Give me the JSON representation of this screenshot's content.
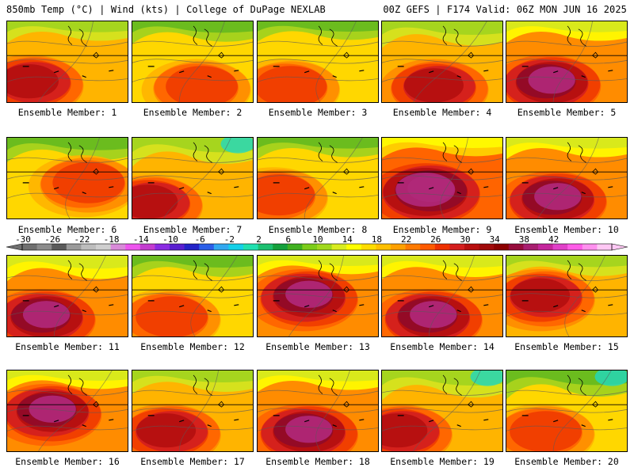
{
  "header": {
    "left": "850mb Temp (°C) | Wind (kts) | College of DuPage NEXLAB",
    "right": "00Z GEFS | F174 Valid: 06Z MON JUN 16 2025"
  },
  "panels": [
    {
      "label": "Ensemble Member: 1",
      "heat": 0.78,
      "cool": 0.35,
      "hot_x": 0.2,
      "hot_y": 0.8
    },
    {
      "label": "Ensemble Member: 2",
      "heat": 0.6,
      "cool": 0.4,
      "hot_x": 0.55,
      "hot_y": 0.85
    },
    {
      "label": "Ensemble Member: 3",
      "heat": 0.62,
      "cool": 0.3,
      "hot_x": 0.25,
      "hot_y": 0.85
    },
    {
      "label": "Ensemble Member: 4",
      "heat": 0.68,
      "cool": 0.6,
      "hot_x": 0.45,
      "hot_y": 0.85
    },
    {
      "label": "Ensemble Member: 5",
      "heat": 0.8,
      "cool": 0.35,
      "hot_x": 0.35,
      "hot_y": 0.8
    },
    {
      "label": "Ensemble Member: 6",
      "heat": 0.55,
      "cool": 0.5,
      "hot_x": 0.65,
      "hot_y": 0.6
    },
    {
      "label": "Ensemble Member: 7",
      "heat": 0.65,
      "cool": 0.7,
      "hot_x": 0.15,
      "hot_y": 0.85
    },
    {
      "label": "Ensemble Member: 8",
      "heat": 0.62,
      "cool": 0.35,
      "hot_x": 0.15,
      "hot_y": 0.75
    },
    {
      "label": "Ensemble Member: 9",
      "heat": 0.95,
      "cool": 0.3,
      "hot_x": 0.38,
      "hot_y": 0.7
    },
    {
      "label": "Ensemble Member: 10",
      "heat": 0.92,
      "cool": 0.35,
      "hot_x": 0.4,
      "hot_y": 0.8
    },
    {
      "label": "Ensemble Member: 11",
      "heat": 0.82,
      "cool": 0.55,
      "hot_x": 0.3,
      "hot_y": 0.8
    },
    {
      "label": "Ensemble Member: 12",
      "heat": 0.62,
      "cool": 0.45,
      "hot_x": 0.3,
      "hot_y": 0.8
    },
    {
      "label": "Ensemble Member: 13",
      "heat": 0.85,
      "cool": 0.3,
      "hot_x": 0.4,
      "hot_y": 0.55
    },
    {
      "label": "Ensemble Member: 14",
      "heat": 0.8,
      "cool": 0.45,
      "hot_x": 0.4,
      "hot_y": 0.8
    },
    {
      "label": "Ensemble Member: 15",
      "heat": 0.72,
      "cool": 0.4,
      "hot_x": 0.3,
      "hot_y": 0.55
    },
    {
      "label": "Ensemble Member: 16",
      "heat": 0.9,
      "cool": 0.3,
      "hot_x": 0.35,
      "hot_y": 0.55
    },
    {
      "label": "Ensemble Member: 17",
      "heat": 0.72,
      "cool": 0.45,
      "hot_x": 0.3,
      "hot_y": 0.8
    },
    {
      "label": "Ensemble Member: 18",
      "heat": 0.82,
      "cool": 0.35,
      "hot_x": 0.4,
      "hot_y": 0.8
    },
    {
      "label": "Ensemble Member: 19",
      "heat": 0.68,
      "cool": 0.75,
      "hot_x": 0.15,
      "hot_y": 0.8
    },
    {
      "label": "Ensemble Member: 20",
      "heat": 0.62,
      "cool": 0.7,
      "hot_x": 0.3,
      "hot_y": 0.8
    }
  ],
  "colorbar": {
    "ticks": [
      "-30",
      "-26",
      "-22",
      "-18",
      "-14",
      "-10",
      "-6",
      "-2",
      "2",
      "6",
      "10",
      "14",
      "18",
      "22",
      "26",
      "30",
      "34",
      "38",
      "42"
    ],
    "colors": [
      "#707070",
      "#8c8c8c",
      "#5a5a5a",
      "#9a9a9a",
      "#bdbdbd",
      "#cfcfcf",
      "#d88ad8",
      "#ee55ee",
      "#c33ccf",
      "#8a2be2",
      "#5a1fd0",
      "#2323c8",
      "#2a5ee8",
      "#32a8f0",
      "#14d0e8",
      "#20e0b0",
      "#1cc070",
      "#14a03c",
      "#40b020",
      "#7ccd1a",
      "#a0d81e",
      "#d8ec20",
      "#ffff00",
      "#ffdc00",
      "#ffbf00",
      "#ffa000",
      "#ff7a00",
      "#ff5a00",
      "#ee3000",
      "#d41e1e",
      "#b80f0f",
      "#a00a0a",
      "#8c0000",
      "#960c3c",
      "#a81e70",
      "#c4269c",
      "#e040c8",
      "#ff5ce8",
      "#ff90ee",
      "#ffc8f4"
    ]
  }
}
